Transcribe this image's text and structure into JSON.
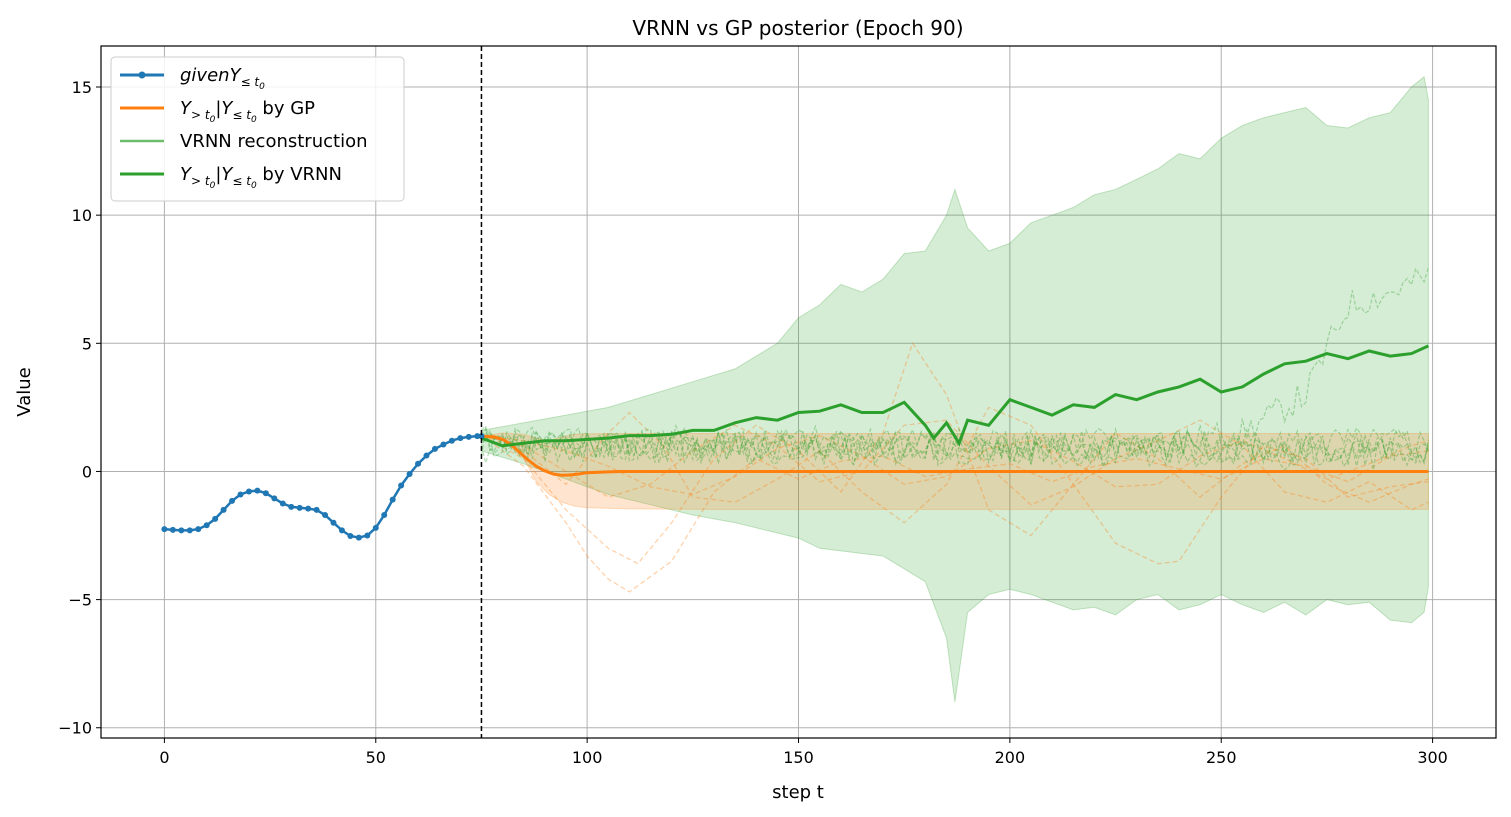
{
  "chart_data": {
    "type": "line",
    "title": "VRNN vs GP posterior (Epoch 90)",
    "xlabel": "step t",
    "ylabel": "Value",
    "xlim": [
      -15,
      315
    ],
    "ylim": [
      -10.4,
      16.6
    ],
    "xticks": [
      0,
      50,
      100,
      150,
      200,
      250,
      300
    ],
    "yticks": [
      -10,
      -5,
      0,
      5,
      10,
      15
    ],
    "xtick_labels": [
      "0",
      "50",
      "100",
      "150",
      "200",
      "250",
      "300"
    ],
    "ytick_labels": [
      "−10",
      "−5",
      "0",
      "5",
      "10",
      "15"
    ],
    "grid": true,
    "legend_position": "top-left",
    "t0": 75,
    "legend": [
      {
        "base": "given",
        "sub": "≤ t",
        "subsub": "0",
        "tail": "",
        "color": "#1f77b4",
        "marker": true
      },
      {
        "base": "Y",
        "sub": "> t",
        "subsub": "0",
        "mid": "|Y",
        "sub2": "≤ t",
        "subsub2": "0",
        "tail": " by GP",
        "color": "#ff7f0e"
      },
      {
        "base": "VRNN reconstruction",
        "color": "#2ca02c",
        "light": true
      },
      {
        "base": "Y",
        "sub": "> t",
        "subsub": "0",
        "mid": "|Y",
        "sub2": "≤ t",
        "subsub2": "0",
        "tail": " by VRNN",
        "color": "#2ca02c"
      }
    ],
    "series": [
      {
        "name": "givenY≤t0",
        "color": "#1f77b4",
        "x": [
          0,
          2,
          4,
          6,
          8,
          10,
          12,
          14,
          16,
          18,
          20,
          22,
          24,
          26,
          28,
          30,
          32,
          34,
          36,
          38,
          40,
          42,
          44,
          46,
          48,
          50,
          52,
          54,
          56,
          58,
          60,
          62,
          64,
          66,
          68,
          70,
          72,
          74,
          75
        ],
        "y": [
          -2.25,
          -2.28,
          -2.3,
          -2.3,
          -2.25,
          -2.1,
          -1.85,
          -1.5,
          -1.15,
          -0.9,
          -0.78,
          -0.75,
          -0.85,
          -1.05,
          -1.25,
          -1.38,
          -1.42,
          -1.45,
          -1.5,
          -1.7,
          -2.0,
          -2.3,
          -2.52,
          -2.58,
          -2.5,
          -2.2,
          -1.7,
          -1.1,
          -0.55,
          -0.1,
          0.3,
          0.62,
          0.88,
          1.05,
          1.2,
          1.3,
          1.35,
          1.38,
          1.38
        ]
      },
      {
        "name": "Y>t0|Y≤t0 by GP (mean)",
        "color": "#ff7f0e",
        "x": [
          75,
          78,
          80,
          82,
          84,
          86,
          88,
          90,
          92,
          94,
          96,
          98,
          100,
          104,
          108,
          112,
          120,
          130,
          140,
          150,
          200,
          250,
          299
        ],
        "y": [
          1.38,
          1.35,
          1.25,
          1.05,
          0.75,
          0.45,
          0.2,
          0.02,
          -0.1,
          -0.15,
          -0.14,
          -0.1,
          -0.05,
          -0.02,
          0,
          0,
          0,
          0,
          0,
          0,
          0,
          0,
          0
        ]
      },
      {
        "name": "Y>t0|Y≤t0 by VRNN (mean)",
        "color": "#2ca02c",
        "x": [
          75,
          80,
          85,
          90,
          95,
          100,
          105,
          110,
          115,
          120,
          125,
          130,
          135,
          140,
          145,
          150,
          155,
          160,
          165,
          170,
          175,
          180,
          182,
          185,
          188,
          190,
          195,
          200,
          205,
          210,
          215,
          220,
          225,
          230,
          235,
          240,
          245,
          250,
          255,
          260,
          265,
          270,
          275,
          280,
          285,
          290,
          295,
          299
        ],
        "y": [
          1.3,
          1.0,
          1.1,
          1.2,
          1.2,
          1.25,
          1.3,
          1.4,
          1.4,
          1.45,
          1.6,
          1.6,
          1.9,
          2.1,
          2.0,
          2.3,
          2.35,
          2.6,
          2.3,
          2.3,
          2.7,
          1.8,
          1.3,
          1.9,
          1.1,
          2.0,
          1.8,
          2.8,
          2.5,
          2.2,
          2.6,
          2.5,
          3.0,
          2.8,
          3.1,
          3.3,
          3.6,
          3.1,
          3.3,
          3.8,
          4.2,
          4.3,
          4.6,
          4.4,
          4.7,
          4.5,
          4.6,
          4.9
        ]
      }
    ],
    "bands": [
      {
        "name": "VRNN band",
        "color": "#2ca02c",
        "x": [
          75,
          85,
          95,
          105,
          115,
          125,
          135,
          145,
          150,
          155,
          160,
          165,
          170,
          175,
          180,
          185,
          187,
          190,
          195,
          200,
          205,
          210,
          215,
          220,
          225,
          230,
          235,
          240,
          245,
          250,
          255,
          260,
          265,
          270,
          275,
          280,
          285,
          290,
          295,
          298,
          299
        ],
        "upper": [
          1.6,
          1.9,
          2.2,
          2.5,
          3.0,
          3.5,
          4.0,
          5.0,
          6.0,
          6.5,
          7.3,
          7.0,
          7.5,
          8.5,
          8.6,
          10.0,
          11.0,
          9.5,
          8.6,
          8.9,
          9.7,
          10.0,
          10.3,
          10.8,
          11.0,
          11.4,
          11.8,
          12.4,
          12.2,
          13.0,
          13.5,
          13.8,
          14.0,
          14.2,
          13.5,
          13.4,
          13.8,
          14.0,
          15.0,
          15.4,
          14.5
        ],
        "lower": [
          0.8,
          0.3,
          -0.3,
          -0.9,
          -1.3,
          -1.7,
          -2.0,
          -2.4,
          -2.6,
          -3.0,
          -3.1,
          -3.2,
          -3.3,
          -3.8,
          -4.3,
          -6.5,
          -9.0,
          -5.5,
          -4.8,
          -4.6,
          -4.8,
          -5.1,
          -5.4,
          -5.3,
          -5.6,
          -5.0,
          -4.8,
          -5.4,
          -5.2,
          -4.8,
          -5.2,
          -5.5,
          -5.1,
          -5.6,
          -5.0,
          -5.2,
          -5.1,
          -5.8,
          -5.9,
          -5.5,
          -4.5
        ]
      },
      {
        "name": "GP band",
        "color": "#ff7f0e",
        "x": [
          75,
          80,
          85,
          88,
          91,
          94,
          97,
          100,
          110,
          120,
          130,
          150,
          200,
          250,
          299
        ],
        "upper": [
          1.38,
          1.5,
          1.45,
          1.3,
          1.2,
          1.35,
          1.45,
          1.47,
          1.48,
          1.48,
          1.48,
          1.48,
          1.48,
          1.48,
          1.48
        ],
        "lower": [
          1.38,
          1.2,
          0.5,
          -0.4,
          -0.9,
          -1.2,
          -1.35,
          -1.42,
          -1.46,
          -1.47,
          -1.48,
          -1.48,
          -1.48,
          -1.48,
          -1.48
        ]
      }
    ],
    "gp_samples": [
      {
        "x": [
          75,
          85,
          95,
          100,
          105,
          110,
          120,
          130,
          140,
          150,
          160,
          170,
          180,
          190,
          200,
          210,
          220,
          230,
          240,
          250,
          260,
          270,
          280,
          290,
          299
        ],
        "y": [
          1.4,
          0.2,
          -2.0,
          -3.3,
          -4.2,
          -4.7,
          -3.5,
          -0.8,
          0.5,
          -0.3,
          0.4,
          0.6,
          -0.2,
          0.1,
          0.3,
          -0.4,
          0.2,
          0.5,
          0.1,
          -0.3,
          0.5,
          0.2,
          -0.4,
          0.6,
          0.8
        ]
      },
      {
        "x": [
          75,
          85,
          95,
          105,
          112,
          120,
          130,
          140,
          150,
          160,
          170,
          177,
          185,
          195,
          205,
          215,
          225,
          235,
          245,
          255,
          265,
          275,
          285,
          295,
          299
        ],
        "y": [
          1.4,
          0.5,
          -1.5,
          -3.0,
          -3.6,
          -2.0,
          0.5,
          1.8,
          0.8,
          -0.8,
          1.5,
          5.0,
          3.0,
          -1.5,
          -2.5,
          -0.5,
          1.5,
          0.5,
          -1.0,
          0.3,
          1.0,
          -0.5,
          -1.2,
          -0.5,
          -0.3
        ]
      },
      {
        "x": [
          75,
          85,
          95,
          105,
          110,
          118,
          125,
          135,
          145,
          155,
          165,
          175,
          185,
          195,
          205,
          215,
          225,
          235,
          240,
          250,
          260,
          270,
          280,
          290,
          299
        ],
        "y": [
          1.4,
          0.8,
          -0.5,
          1.5,
          2.3,
          1.0,
          -1.0,
          -1.2,
          -0.3,
          0.8,
          -0.8,
          -2.0,
          -0.5,
          2.5,
          1.8,
          -0.5,
          -2.8,
          -3.6,
          -3.5,
          -1.0,
          1.0,
          0.5,
          -1.0,
          -0.6,
          -0.4
        ]
      },
      {
        "x": [
          75,
          85,
          95,
          105,
          115,
          125,
          135,
          145,
          155,
          165,
          175,
          185,
          195,
          205,
          215,
          225,
          235,
          245,
          255,
          265,
          275,
          285,
          295,
          299
        ],
        "y": [
          1.4,
          1.0,
          0.0,
          -1.0,
          -0.5,
          0.8,
          1.8,
          1.0,
          -0.4,
          0.0,
          1.8,
          2.0,
          0.2,
          -1.3,
          -0.6,
          0.5,
          1.2,
          2.0,
          1.0,
          -0.8,
          -1.2,
          -0.4,
          -1.5,
          -1.2
        ]
      },
      {
        "x": [
          75,
          85,
          95,
          105,
          115,
          125,
          135,
          145,
          155,
          165,
          175,
          185,
          195,
          205,
          215,
          225,
          235,
          245,
          255,
          265,
          275,
          285,
          295,
          299
        ],
        "y": [
          1.4,
          1.2,
          0.8,
          0.2,
          -0.6,
          -0.9,
          -0.2,
          0.9,
          1.4,
          0.6,
          -0.5,
          -0.2,
          0.9,
          1.2,
          0.4,
          -0.6,
          -0.5,
          0.6,
          1.2,
          0.5,
          -0.3,
          0.3,
          1.0,
          1.2
        ]
      }
    ],
    "vrnn_samples": [
      {
        "seed": 11,
        "trend": [
          [
            75,
            1.2
          ],
          [
            150,
            1.0
          ],
          [
            225,
            0.9
          ],
          [
            255,
            1.5
          ],
          [
            270,
            3.0
          ],
          [
            280,
            6.5
          ],
          [
            290,
            7.0
          ],
          [
            299,
            7.6
          ]
        ]
      },
      {
        "seed": 23,
        "trend": [
          [
            75,
            1.1
          ],
          [
            299,
            0.9
          ]
        ]
      },
      {
        "seed": 37,
        "trend": [
          [
            75,
            1.0
          ],
          [
            299,
            0.6
          ]
        ]
      },
      {
        "seed": 41,
        "trend": [
          [
            75,
            1.2
          ],
          [
            299,
            1.1
          ]
        ]
      },
      {
        "seed": 59,
        "trend": [
          [
            75,
            0.9
          ],
          [
            299,
            0.8
          ]
        ]
      },
      {
        "seed": 67,
        "trend": [
          [
            75,
            1.0
          ],
          [
            299,
            1.0
          ]
        ]
      }
    ]
  }
}
